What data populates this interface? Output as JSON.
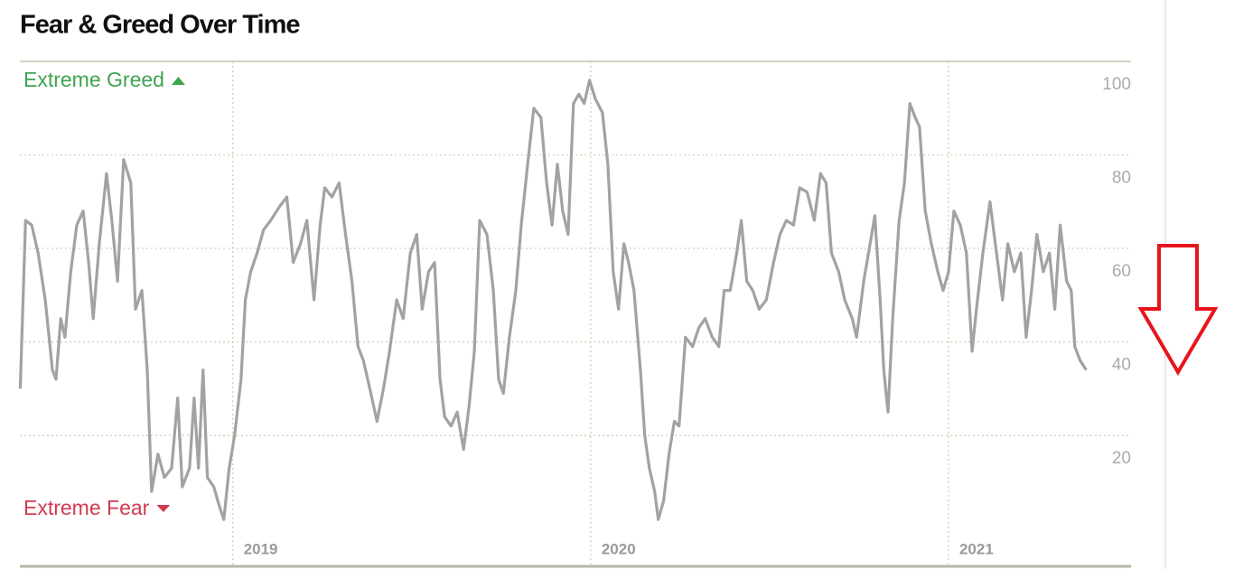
{
  "chart_data": {
    "type": "line",
    "title": "Fear & Greed Over Time",
    "top_label": "Extreme Greed",
    "bottom_label": "Extreme Fear",
    "top_label_color": "#3fa350",
    "bottom_label_color": "#d23a52",
    "series": [
      {
        "color": "#a2a2a2",
        "x": [
          2018.406,
          2018.421,
          2018.438,
          2018.456,
          2018.476,
          2018.496,
          2018.506,
          2018.519,
          2018.531,
          2018.547,
          2018.564,
          2018.582,
          2018.597,
          2018.61,
          2018.627,
          2018.647,
          2018.662,
          2018.678,
          2018.695,
          2018.715,
          2018.728,
          2018.746,
          2018.761,
          2018.773,
          2018.791,
          2018.809,
          2018.829,
          2018.846,
          2018.859,
          2018.879,
          2018.892,
          2018.904,
          2018.917,
          2018.929,
          2018.947,
          2018.962,
          2018.975,
          2018.99,
          2019.005,
          2019.023,
          2019.035,
          2019.05,
          2019.068,
          2019.086,
          2019.106,
          2019.131,
          2019.151,
          2019.169,
          2019.189,
          2019.207,
          2019.227,
          2019.244,
          2019.257,
          2019.277,
          2019.297,
          2019.315,
          2019.333,
          2019.35,
          2019.365,
          2019.383,
          2019.403,
          2019.421,
          2019.438,
          2019.458,
          2019.476,
          2019.496,
          2019.514,
          2019.529,
          2019.547,
          2019.564,
          2019.579,
          2019.592,
          2019.61,
          2019.627,
          2019.645,
          2019.66,
          2019.675,
          2019.69,
          2019.71,
          2019.728,
          2019.743,
          2019.756,
          2019.773,
          2019.791,
          2019.806,
          2019.824,
          2019.841,
          2019.861,
          2019.877,
          2019.892,
          2019.907,
          2019.922,
          2019.937,
          2019.952,
          2019.967,
          2019.982,
          2019.997,
          2020.013,
          2020.033,
          2020.048,
          2020.063,
          2020.078,
          2020.093,
          2020.106,
          2020.121,
          2020.139,
          2020.151,
          2020.164,
          2020.179,
          2020.189,
          2020.204,
          2020.219,
          2020.234,
          2020.247,
          2020.265,
          2020.285,
          2020.302,
          2020.32,
          2020.34,
          2020.358,
          2020.373,
          2020.39,
          2020.408,
          2020.421,
          2020.436,
          2020.453,
          2020.471,
          2020.491,
          2020.511,
          2020.529,
          2020.547,
          2020.567,
          2020.584,
          2020.605,
          2020.625,
          2020.642,
          2020.658,
          2020.673,
          2020.693,
          2020.71,
          2020.731,
          2020.743,
          2020.763,
          2020.781,
          2020.794,
          2020.809,
          2020.819,
          2020.831,
          2020.844,
          2020.862,
          2020.877,
          2020.892,
          2020.907,
          2020.919,
          2020.935,
          2020.952,
          2020.97,
          2020.985,
          2021.0,
          2021.015,
          2021.033,
          2021.05,
          2021.066,
          2021.078,
          2021.096,
          2021.116,
          2021.134,
          2021.151,
          2021.166,
          2021.184,
          2021.202,
          2021.217,
          2021.232,
          2021.247,
          2021.265,
          2021.282,
          2021.297,
          2021.312,
          2021.33,
          2021.343,
          2021.353,
          2021.368,
          2021.385
        ],
        "values": [
          30,
          66,
          65,
          59,
          49,
          34,
          32,
          45,
          41,
          55,
          65,
          68,
          57,
          45,
          61,
          76,
          66,
          53,
          79,
          74,
          47,
          51,
          34,
          8,
          16,
          11,
          13,
          28,
          9,
          13,
          28,
          13,
          34,
          11,
          9,
          5,
          2,
          13,
          20,
          32,
          49,
          55,
          59,
          64,
          66,
          69,
          71,
          57,
          61,
          66,
          49,
          65,
          73,
          71,
          74,
          63,
          53,
          39,
          36,
          30,
          23,
          30,
          38,
          49,
          45,
          59,
          63,
          47,
          55,
          57,
          32,
          24,
          22,
          25,
          17,
          26,
          38,
          66,
          63,
          51,
          32,
          29,
          41,
          51,
          65,
          78,
          90,
          88,
          74,
          65,
          78,
          68,
          63,
          91,
          93,
          91,
          96,
          92,
          89,
          78,
          55,
          47,
          61,
          57,
          51,
          34,
          20,
          13,
          8,
          2,
          6,
          16,
          23,
          22,
          41,
          39,
          43,
          45,
          41,
          39,
          51,
          51,
          59,
          66,
          53,
          51,
          47,
          49,
          57,
          63,
          66,
          65,
          73,
          72,
          66,
          76,
          74,
          59,
          55,
          49,
          45,
          41,
          53,
          61,
          67,
          49,
          34,
          25,
          45,
          66,
          74,
          91,
          88,
          86,
          68,
          61,
          55,
          51,
          55,
          68,
          65,
          59,
          38,
          47,
          59,
          70,
          59,
          49,
          61,
          55,
          59,
          41,
          51,
          63,
          55,
          59,
          47,
          65,
          53,
          51,
          39,
          36,
          34
        ]
      }
    ],
    "xlim": [
      2018.405,
      2021.51
    ],
    "xticks": [
      2019,
      2020,
      2021
    ],
    "ylim": [
      -8,
      100
    ],
    "yticks": [
      20,
      40,
      60,
      80,
      100
    ],
    "grid": true
  }
}
